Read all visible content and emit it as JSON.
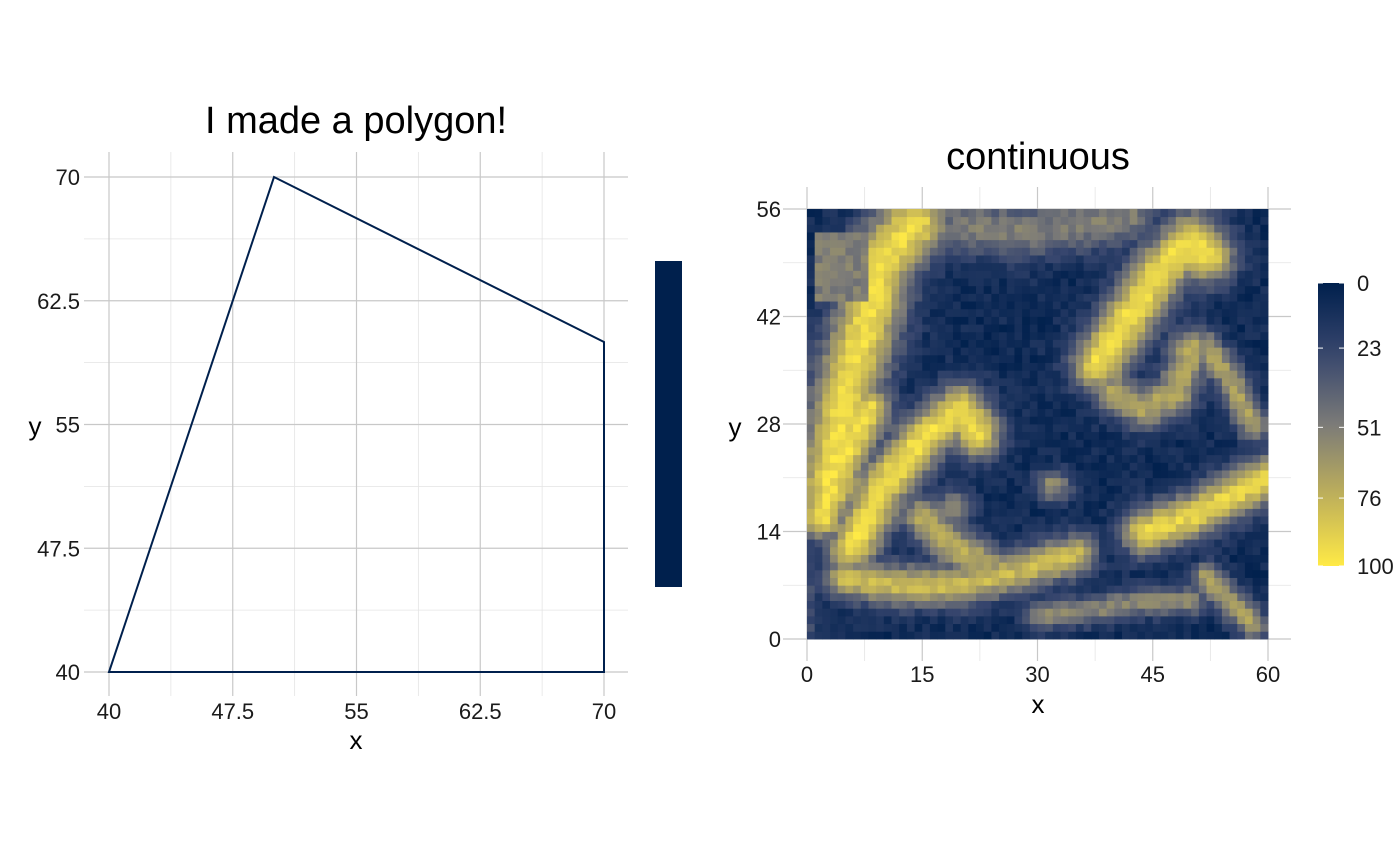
{
  "chart_data": [
    {
      "type": "polygon",
      "title": "I made a polygon!",
      "xlabel": "x",
      "ylabel": "y",
      "xlim": [
        40,
        70
      ],
      "ylim": [
        40,
        70
      ],
      "x_ticks": [
        40,
        47.5,
        55,
        62.5,
        70
      ],
      "x_tick_labels": [
        "40",
        "47.5",
        "55",
        "62.5",
        "70"
      ],
      "y_ticks": [
        40,
        47.5,
        55,
        62.5,
        70
      ],
      "y_tick_labels": [
        "40",
        "47.5",
        "55",
        "62.5",
        "70"
      ],
      "vertices": [
        [
          40,
          40
        ],
        [
          50,
          70
        ],
        [
          70,
          60
        ],
        [
          70,
          40
        ]
      ],
      "line_color": "#00204d",
      "legend": {
        "type": "colorbar",
        "placement": "right",
        "color": "#00204d"
      },
      "grid": true
    },
    {
      "type": "heatmap",
      "title": "continuous",
      "xlabel": "x",
      "ylabel": "y",
      "xlim": [
        0,
        60
      ],
      "ylim": [
        0,
        56
      ],
      "x_ticks": [
        0,
        15,
        30,
        45,
        60
      ],
      "x_tick_labels": [
        "0",
        "15",
        "30",
        "45",
        "60"
      ],
      "y_ticks": [
        0,
        14,
        28,
        42,
        56
      ],
      "y_tick_labels": [
        "0",
        "14",
        "28",
        "42",
        "56"
      ],
      "colorscale": "cividis",
      "colorbar": {
        "placement": "right",
        "range": [
          0,
          100
        ],
        "reversed": true,
        "ticks": [
          0,
          23,
          51,
          76,
          100
        ],
        "tick_labels": [
          "0",
          "23",
          "51",
          "76",
          "100"
        ],
        "low_color": "#00204d",
        "high_color": "#ffea46"
      },
      "grid": true
    }
  ]
}
